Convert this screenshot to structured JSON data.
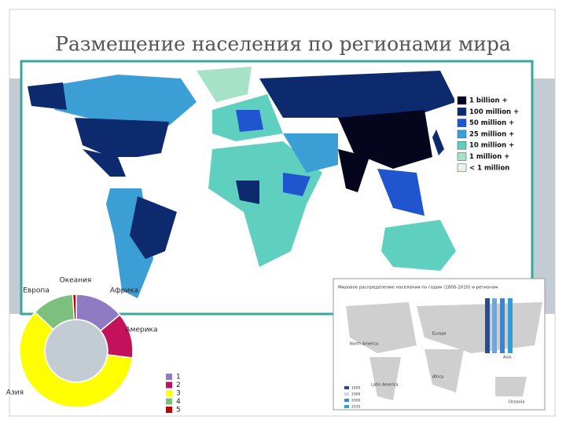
{
  "title": "Размещение населения по регионами мира",
  "map_legend": {
    "labels": [
      "1 billion +",
      "100 million +",
      "50 million +",
      "25 million +",
      "10 million +",
      "1 million +",
      "< 1 million"
    ],
    "colors": [
      "#05051e",
      "#0e2a6e",
      "#1f56cf",
      "#3b9fd6",
      "#5fcfc0",
      "#a6e3c6",
      "#e6f5e6"
    ]
  },
  "chart_data": {
    "type": "donut",
    "categories": [
      "Африка",
      "Америка",
      "Азия",
      "Европа",
      "Океания"
    ],
    "values": [
      14,
      13,
      60,
      12,
      1
    ],
    "colors": [
      "#8e7cc3",
      "#c4125a",
      "#ffff00",
      "#7dbf7d",
      "#c00000"
    ],
    "legend": [
      "1",
      "2",
      "3",
      "4",
      "5"
    ]
  },
  "inset": {
    "title": "Мировое распределение населения по годам (1800-2010) и регионам",
    "regions": [
      "North America",
      "Europe",
      "Asia",
      "Latin America",
      "Africa",
      "Oceania"
    ],
    "legend": [
      "1800",
      "1900",
      "2000",
      "2010"
    ]
  }
}
